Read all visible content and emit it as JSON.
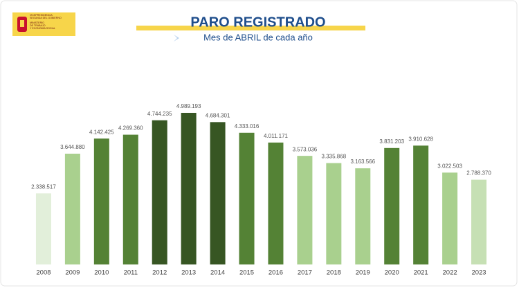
{
  "header": {
    "logo": [
      "VICEPRESIDENCIA",
      "SEGUNDA DEL GOBIERNO",
      "MINISTERIO",
      "DE TRABAJO",
      "Y ECONOMÍA SOCIAL"
    ]
  },
  "chart_data": {
    "type": "bar",
    "title": "PARO REGISTRADO",
    "subtitle": "Mes de ABRIL de cada año",
    "categories": [
      "2008",
      "2009",
      "2010",
      "2011",
      "2012",
      "2013",
      "2014",
      "2015",
      "2016",
      "2017",
      "2018",
      "2019",
      "2020",
      "2021",
      "2022",
      "2023"
    ],
    "values": [
      2338517,
      3644880,
      4142425,
      4269360,
      4744235,
      4989193,
      4684301,
      4333016,
      4011171,
      3573036,
      3335868,
      3163566,
      3831203,
      3910628,
      3022503,
      2788370
    ],
    "value_labels": [
      "2.338.517",
      "3.644.880",
      "4.142.425",
      "4.269.360",
      "4.744.235",
      "4.989.193",
      "4.684.301",
      "4.333.016",
      "4.011.171",
      "3.573.036",
      "3.335.868",
      "3.163.566",
      "3.831.203",
      "3.910.628",
      "3.022.503",
      "2.788.370"
    ],
    "colors": [
      "#e2efda",
      "#a9d08e",
      "#548235",
      "#548235",
      "#375623",
      "#375623",
      "#375623",
      "#548235",
      "#548235",
      "#a9d08e",
      "#a9d08e",
      "#a9d08e",
      "#548235",
      "#548235",
      "#a9d08e",
      "#c6e0b4"
    ],
    "ylim": [
      0,
      5000000
    ]
  }
}
